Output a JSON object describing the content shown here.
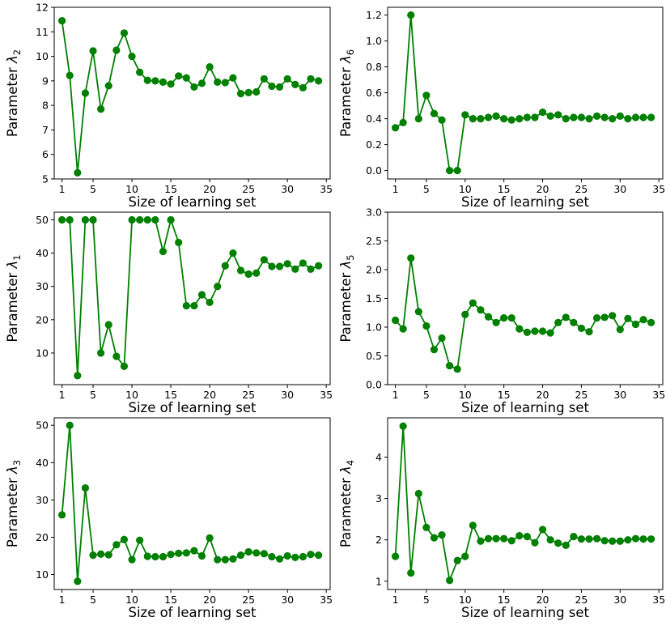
{
  "chart_data": [
    {
      "type": "line",
      "ylabel": "Parameter λ₂",
      "ylabel_base": "Parameter λ",
      "ylabel_sub": "2",
      "xlabel": "Size of learning set",
      "xlim": [
        0,
        35.5
      ],
      "ylim": [
        5,
        12
      ],
      "xticks": [
        "1",
        "5",
        "10",
        "15",
        "20",
        "25",
        "30",
        "35"
      ],
      "yticks": [
        "5",
        "6",
        "7",
        "8",
        "9",
        "10",
        "11",
        "12"
      ],
      "color": "#008000",
      "x": [
        1,
        2,
        3,
        4,
        5,
        6,
        7,
        8,
        9,
        10,
        11,
        12,
        13,
        14,
        15,
        16,
        17,
        18,
        19,
        20,
        21,
        22,
        23,
        24,
        25,
        26,
        27,
        28,
        29,
        30,
        31,
        32,
        33,
        34
      ],
      "values": [
        11.45,
        9.22,
        5.25,
        8.5,
        10.22,
        7.85,
        8.8,
        10.25,
        10.95,
        10.0,
        9.35,
        9.02,
        9.0,
        8.95,
        8.87,
        9.2,
        9.12,
        8.75,
        8.9,
        9.57,
        8.95,
        8.93,
        9.12,
        8.48,
        8.52,
        8.55,
        9.08,
        8.78,
        8.75,
        9.08,
        8.85,
        8.72,
        9.08,
        9.0
      ]
    },
    {
      "type": "line",
      "ylabel": "Parameter λ₆",
      "ylabel_base": "Parameter λ",
      "ylabel_sub": "6",
      "xlabel": "Size of learning set",
      "xlim": [
        0,
        35.5
      ],
      "ylim": [
        -0.065,
        1.26
      ],
      "xticks": [
        "1",
        "5",
        "10",
        "15",
        "20",
        "25",
        "30",
        "35"
      ],
      "yticks": [
        "0.0",
        "0.2",
        "0.4",
        "0.6",
        "0.8",
        "1.0",
        "1.2"
      ],
      "color": "#008000",
      "x": [
        1,
        2,
        3,
        4,
        5,
        6,
        7,
        8,
        9,
        10,
        11,
        12,
        13,
        14,
        15,
        16,
        17,
        18,
        19,
        20,
        21,
        22,
        23,
        24,
        25,
        26,
        27,
        28,
        29,
        30,
        31,
        32,
        33,
        34
      ],
      "values": [
        0.33,
        0.37,
        1.2,
        0.4,
        0.58,
        0.44,
        0.39,
        0.0,
        0.0,
        0.43,
        0.4,
        0.4,
        0.41,
        0.42,
        0.4,
        0.39,
        0.4,
        0.41,
        0.41,
        0.45,
        0.42,
        0.43,
        0.4,
        0.41,
        0.41,
        0.4,
        0.42,
        0.41,
        0.4,
        0.42,
        0.4,
        0.41,
        0.41,
        0.41
      ]
    },
    {
      "type": "line",
      "ylabel": "Parameter λ₁",
      "ylabel_base": "Parameter λ",
      "ylabel_sub": "1",
      "xlabel": "Size of learning set",
      "xlim": [
        0,
        35.5
      ],
      "ylim": [
        0.5,
        52.3
      ],
      "xticks": [
        "1",
        "5",
        "10",
        "15",
        "20",
        "25",
        "30",
        "35"
      ],
      "yticks": [
        "10",
        "20",
        "30",
        "40",
        "50"
      ],
      "color": "#008000",
      "x": [
        1,
        2,
        3,
        4,
        5,
        6,
        7,
        8,
        9,
        10,
        11,
        12,
        13,
        14,
        15,
        16,
        17,
        18,
        19,
        20,
        21,
        22,
        23,
        24,
        25,
        26,
        27,
        28,
        29,
        30,
        31,
        32,
        33,
        34
      ],
      "values": [
        50,
        50,
        3.2,
        50,
        50,
        10,
        18.5,
        9,
        6,
        50,
        50,
        50,
        50,
        40.5,
        50,
        43.2,
        24.2,
        24.2,
        27.5,
        25.2,
        30,
        36.2,
        40,
        34.8,
        33.7,
        34,
        38,
        36,
        36,
        36.8,
        35.2,
        37,
        35.2,
        36.2
      ]
    },
    {
      "type": "line",
      "ylabel": "Parameter λ₅",
      "ylabel_base": "Parameter λ",
      "ylabel_sub": "5",
      "xlabel": "Size of learning set",
      "xlim": [
        0,
        35.5
      ],
      "ylim": [
        0,
        3
      ],
      "xticks": [
        "1",
        "5",
        "10",
        "15",
        "20",
        "25",
        "30",
        "35"
      ],
      "yticks": [
        "0.0",
        "0.5",
        "1.0",
        "1.5",
        "2.0",
        "2.5",
        "3.0"
      ],
      "color": "#008000",
      "x": [
        1,
        2,
        3,
        4,
        5,
        6,
        7,
        8,
        9,
        10,
        11,
        12,
        13,
        14,
        15,
        16,
        17,
        18,
        19,
        20,
        21,
        22,
        23,
        24,
        25,
        26,
        27,
        28,
        29,
        30,
        31,
        32,
        33,
        34
      ],
      "values": [
        1.12,
        0.97,
        2.2,
        1.27,
        1.02,
        0.61,
        0.81,
        0.33,
        0.27,
        1.22,
        1.42,
        1.3,
        1.18,
        1.08,
        1.16,
        1.16,
        0.97,
        0.91,
        0.93,
        0.93,
        0.9,
        1.08,
        1.17,
        1.08,
        0.98,
        0.92,
        1.16,
        1.17,
        1.2,
        0.96,
        1.15,
        1.05,
        1.13,
        1.08
      ]
    },
    {
      "type": "line",
      "ylabel": "Parameter λ₃",
      "ylabel_base": "Parameter λ",
      "ylabel_sub": "3",
      "xlabel": "Size of learning set",
      "xlim": [
        0,
        35.5
      ],
      "ylim": [
        6,
        52
      ],
      "xticks": [
        "1",
        "5",
        "10",
        "15",
        "20",
        "25",
        "30",
        "35"
      ],
      "yticks": [
        "10",
        "20",
        "30",
        "40",
        "50"
      ],
      "color": "#008000",
      "x": [
        1,
        2,
        3,
        4,
        5,
        6,
        7,
        8,
        9,
        10,
        11,
        12,
        13,
        14,
        15,
        16,
        17,
        18,
        19,
        20,
        21,
        22,
        23,
        24,
        25,
        26,
        27,
        28,
        29,
        30,
        31,
        32,
        33,
        34
      ],
      "values": [
        26,
        50,
        8.2,
        33.2,
        15.2,
        15.5,
        15.3,
        18,
        19.4,
        14,
        19.2,
        14.9,
        14.8,
        14.8,
        15.4,
        15.7,
        15.8,
        16.4,
        15,
        19.8,
        14,
        14,
        14.2,
        15.2,
        16.1,
        15.8,
        15.6,
        14.8,
        14.2,
        15,
        14.6,
        14.8,
        15.4,
        15.2
      ]
    },
    {
      "type": "line",
      "ylabel": "Parameter λ₄",
      "ylabel_base": "Parameter λ",
      "ylabel_sub": "4",
      "xlabel": "Size of learning set",
      "xlim": [
        0,
        35.5
      ],
      "ylim": [
        0.8,
        4.95
      ],
      "xticks": [
        "1",
        "5",
        "10",
        "15",
        "20",
        "25",
        "30",
        "35"
      ],
      "yticks": [
        "1",
        "2",
        "3",
        "4"
      ],
      "color": "#008000",
      "x": [
        1,
        2,
        3,
        4,
        5,
        6,
        7,
        8,
        9,
        10,
        11,
        12,
        13,
        14,
        15,
        16,
        17,
        18,
        19,
        20,
        21,
        22,
        23,
        24,
        25,
        26,
        27,
        28,
        29,
        30,
        31,
        32,
        33,
        34
      ],
      "values": [
        1.6,
        4.75,
        1.2,
        3.12,
        2.3,
        2.05,
        2.12,
        1.02,
        1.5,
        1.6,
        2.35,
        1.97,
        2.03,
        2.03,
        2.03,
        1.98,
        2.1,
        2.08,
        1.93,
        2.25,
        2,
        1.92,
        1.87,
        2.08,
        2.02,
        2.02,
        2.03,
        1.98,
        1.97,
        1.97,
        2,
        2.03,
        2.02,
        2.02
      ]
    }
  ]
}
